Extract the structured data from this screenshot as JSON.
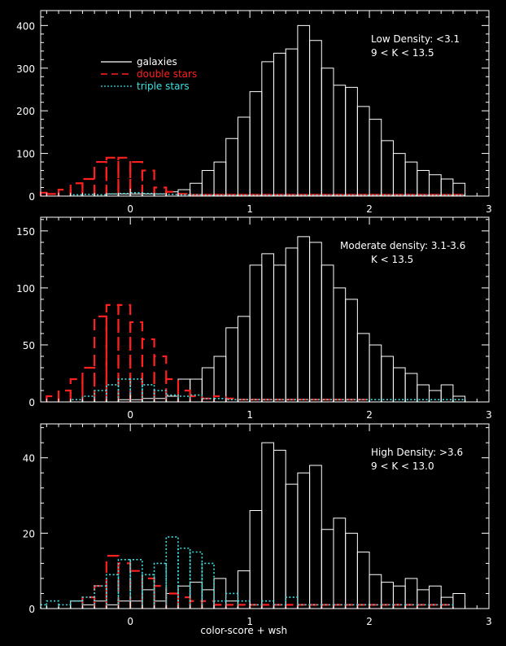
{
  "chart_data": [
    {
      "type": "histogram",
      "annotations": [
        "Low Density: <3.1",
        "9 < K < 13.5"
      ],
      "legend": {
        "placement": "top-left",
        "entries": [
          {
            "label": "galaxies",
            "color": "#ffffff",
            "style": "solid"
          },
          {
            "label": "double stars",
            "color": "#ff2020",
            "style": "dashed"
          },
          {
            "label": "triple stars",
            "color": "#40e0e0",
            "style": "dotted"
          }
        ]
      },
      "xlim": [
        -0.75,
        3.0
      ],
      "ylim": [
        0,
        435
      ],
      "x_ticks": [
        0,
        1,
        2,
        3
      ],
      "y_ticks": [
        0,
        100,
        200,
        300,
        400
      ],
      "bin_width": 0.1,
      "series": [
        {
          "name": "galaxies",
          "color": "#ffffff",
          "style": "solid",
          "x": [
            -0.15,
            -0.05,
            0.05,
            0.15,
            0.25,
            0.35,
            0.45,
            0.55,
            0.65,
            0.75,
            0.85,
            0.95,
            1.05,
            1.15,
            1.25,
            1.35,
            1.45,
            1.55,
            1.65,
            1.75,
            1.85,
            1.95,
            2.05,
            2.15,
            2.25,
            2.35,
            2.45,
            2.55,
            2.65,
            2.75
          ],
          "values": [
            5,
            5,
            5,
            5,
            5,
            10,
            15,
            30,
            60,
            80,
            135,
            185,
            245,
            315,
            335,
            345,
            400,
            365,
            300,
            260,
            255,
            210,
            180,
            130,
            100,
            80,
            60,
            50,
            40,
            30
          ]
        },
        {
          "name": "double stars",
          "color": "#ff2020",
          "style": "dashed",
          "x": [
            -0.75,
            -0.65,
            -0.55,
            -0.45,
            -0.35,
            -0.25,
            -0.15,
            -0.05,
            0.05,
            0.15,
            0.25,
            0.35,
            0.45,
            0.55,
            0.65,
            0.75,
            0.85,
            0.95,
            1.05,
            1.15,
            1.25,
            1.35,
            1.45,
            1.55,
            1.65,
            1.75,
            1.85,
            1.95,
            2.05,
            2.15,
            2.25,
            2.35,
            2.45,
            2.55,
            2.65,
            2.75
          ],
          "values": [
            8,
            5,
            15,
            30,
            40,
            80,
            90,
            90,
            80,
            60,
            20,
            10,
            5,
            3,
            3,
            3,
            3,
            3,
            3,
            3,
            3,
            3,
            3,
            3,
            3,
            3,
            3,
            3,
            3,
            3,
            3,
            3,
            3,
            3,
            3,
            3
          ]
        },
        {
          "name": "triple stars",
          "color": "#40e0e0",
          "style": "dotted",
          "x": [
            -0.45,
            -0.35,
            -0.25,
            -0.15,
            -0.05,
            0.05,
            0.15,
            0.25,
            0.35,
            0.45,
            0.55,
            0.65,
            0.75,
            0.85,
            0.95,
            1.05,
            1.15,
            1.25,
            1.35,
            1.45,
            1.55,
            1.65,
            1.75,
            1.85,
            1.95,
            2.05,
            2.15,
            2.25,
            2.35,
            2.45,
            2.55,
            2.65,
            2.75
          ],
          "values": [
            3,
            4,
            3,
            5,
            6,
            8,
            6,
            5,
            4,
            3,
            3,
            2,
            2,
            2,
            2,
            2,
            2,
            2,
            2,
            2,
            2,
            2,
            2,
            2,
            2,
            2,
            2,
            2,
            2,
            2,
            2,
            2,
            2
          ]
        }
      ]
    },
    {
      "type": "histogram",
      "annotations": [
        "Moderate density: 3.1-3.6",
        "K < 13.5"
      ],
      "xlim": [
        -0.75,
        3.0
      ],
      "ylim": [
        0,
        162
      ],
      "x_ticks": [
        0,
        1,
        2,
        3
      ],
      "y_ticks": [
        0,
        50,
        100,
        150
      ],
      "bin_width": 0.1,
      "series": [
        {
          "name": "galaxies",
          "color": "#ffffff",
          "style": "solid",
          "x": [
            -0.05,
            0.05,
            0.15,
            0.25,
            0.35,
            0.45,
            0.55,
            0.65,
            0.75,
            0.85,
            0.95,
            1.05,
            1.15,
            1.25,
            1.35,
            1.45,
            1.55,
            1.65,
            1.75,
            1.85,
            1.95,
            2.05,
            2.15,
            2.25,
            2.35,
            2.45,
            2.55,
            2.65,
            2.75
          ],
          "values": [
            2,
            2,
            3,
            3,
            5,
            20,
            20,
            30,
            40,
            65,
            75,
            120,
            130,
            120,
            135,
            145,
            140,
            120,
            100,
            90,
            60,
            50,
            40,
            30,
            25,
            15,
            10,
            15,
            5
          ]
        },
        {
          "name": "double stars",
          "color": "#ff2020",
          "style": "dashed",
          "x": [
            -0.65,
            -0.55,
            -0.45,
            -0.35,
            -0.25,
            -0.15,
            -0.05,
            0.05,
            0.15,
            0.25,
            0.35,
            0.45,
            0.55,
            0.65,
            0.75,
            0.85,
            0.95,
            1.05,
            1.15,
            1.25,
            1.35,
            1.45,
            1.55,
            1.65,
            1.75,
            1.85,
            1.95
          ],
          "values": [
            5,
            10,
            20,
            30,
            75,
            85,
            85,
            70,
            55,
            40,
            20,
            10,
            5,
            3,
            5,
            3,
            2,
            2,
            2,
            2,
            2,
            2,
            2,
            2,
            2,
            2,
            2
          ]
        },
        {
          "name": "triple stars",
          "color": "#40e0e0",
          "style": "dotted",
          "x": [
            -0.45,
            -0.35,
            -0.25,
            -0.15,
            -0.05,
            0.05,
            0.15,
            0.25,
            0.35,
            0.45,
            0.55,
            0.65,
            0.75,
            0.85,
            0.95,
            1.05,
            1.15,
            1.25,
            1.35,
            1.45,
            1.55,
            1.65,
            1.75,
            1.85,
            1.95,
            2.05,
            2.15,
            2.25,
            2.35,
            2.45,
            2.55,
            2.65,
            2.75
          ],
          "values": [
            2,
            5,
            10,
            15,
            20,
            20,
            15,
            10,
            6,
            5,
            6,
            3,
            3,
            2,
            2,
            2,
            2,
            2,
            2,
            2,
            2,
            2,
            2,
            2,
            2,
            2,
            2,
            2,
            2,
            2,
            2,
            2,
            2
          ]
        }
      ]
    },
    {
      "type": "histogram",
      "annotations": [
        "High Density: >3.6",
        "9 < K < 13.0"
      ],
      "xlim": [
        -0.75,
        3.0
      ],
      "ylim": [
        0,
        49
      ],
      "x_ticks": [
        0,
        1,
        2,
        3
      ],
      "y_ticks": [
        0,
        20,
        40
      ],
      "bin_width": 0.1,
      "xlabel": "color-score + wsh",
      "series": [
        {
          "name": "galaxies",
          "color": "#ffffff",
          "style": "solid",
          "x": [
            -0.45,
            -0.35,
            -0.25,
            -0.15,
            -0.05,
            0.05,
            0.15,
            0.25,
            0.35,
            0.45,
            0.55,
            0.65,
            0.75,
            0.85,
            0.95,
            1.05,
            1.15,
            1.25,
            1.35,
            1.45,
            1.55,
            1.65,
            1.75,
            1.85,
            1.95,
            2.05,
            2.15,
            2.25,
            2.35,
            2.45,
            2.55,
            2.65,
            2.75
          ],
          "values": [
            2,
            1,
            2,
            1,
            2,
            2,
            5,
            2,
            4,
            6,
            7,
            5,
            8,
            2,
            10,
            26,
            44,
            42,
            33,
            36,
            38,
            21,
            24,
            20,
            15,
            9,
            7,
            6,
            8,
            5,
            6,
            3,
            4
          ]
        },
        {
          "name": "double stars",
          "color": "#ff2020",
          "style": "dashed",
          "x": [
            -0.35,
            -0.25,
            -0.15,
            -0.05,
            0.05,
            0.15,
            0.25,
            0.35,
            0.45,
            0.55,
            0.65,
            0.75,
            0.85,
            0.95,
            1.05,
            1.15,
            1.25,
            1.35,
            1.45,
            1.55,
            1.65,
            1.75,
            1.85,
            1.95,
            2.05,
            2.15,
            2.25,
            2.35,
            2.45,
            2.55,
            2.65
          ],
          "values": [
            3,
            6,
            14,
            12,
            10,
            8,
            6,
            4,
            3,
            2,
            2,
            1,
            1,
            1,
            1,
            1,
            1,
            1,
            1,
            1,
            1,
            1,
            1,
            1,
            1,
            1,
            1,
            1,
            1,
            1,
            1
          ]
        },
        {
          "name": "triple stars",
          "color": "#40e0e0",
          "style": "dotted",
          "x": [
            -0.75,
            -0.65,
            -0.55,
            -0.45,
            -0.35,
            -0.25,
            -0.15,
            -0.05,
            0.05,
            0.15,
            0.25,
            0.35,
            0.45,
            0.55,
            0.65,
            0.75,
            0.85,
            0.95,
            1.05,
            1.15,
            1.25,
            1.35,
            1.45,
            1.55,
            1.65,
            1.75,
            1.85,
            1.95,
            2.05,
            2.15,
            2.25,
            2.35,
            2.45,
            2.55,
            2.65
          ],
          "values": [
            1,
            2,
            1,
            2,
            3,
            6,
            9,
            13,
            13,
            9,
            12,
            19,
            16,
            15,
            12,
            2,
            4,
            2,
            1,
            2,
            1,
            3,
            1,
            1,
            1,
            1,
            1,
            1,
            1,
            1,
            1,
            1,
            1,
            1,
            1
          ]
        }
      ]
    }
  ]
}
